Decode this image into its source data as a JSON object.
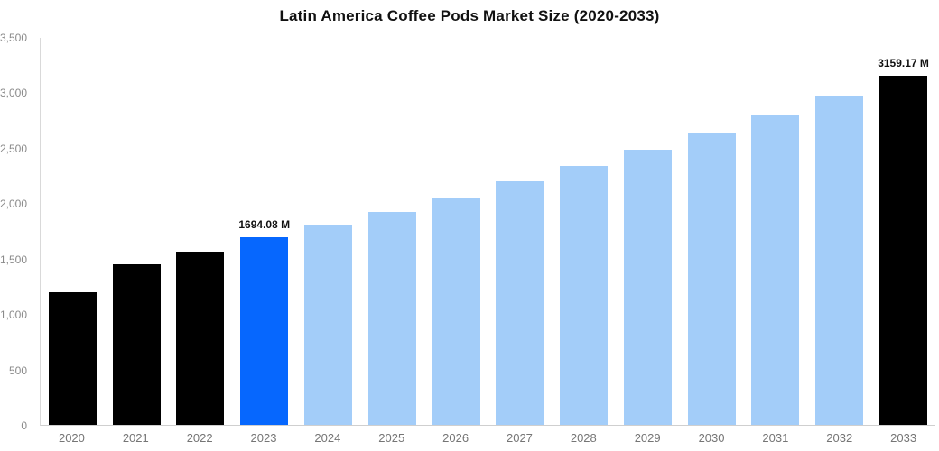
{
  "chart_data": {
    "type": "bar",
    "title": "Latin America Coffee Pods Market Size (2020-2033)",
    "categories": [
      "2020",
      "2021",
      "2022",
      "2023",
      "2024",
      "2025",
      "2026",
      "2027",
      "2028",
      "2029",
      "2030",
      "2031",
      "2032",
      "2033"
    ],
    "values": [
      1200,
      1450,
      1570,
      1694.08,
      1810,
      1925,
      2060,
      2200,
      2340,
      2490,
      2645,
      2810,
      2975,
      3159.17
    ],
    "bar_color_keys": [
      "historical",
      "historical",
      "historical",
      "highlight",
      "forecast",
      "forecast",
      "forecast",
      "forecast",
      "forecast",
      "forecast",
      "forecast",
      "forecast",
      "forecast",
      "historical"
    ],
    "palette": {
      "historical": "#000000",
      "highlight": "#0667fe",
      "forecast": "#a3cdf9"
    },
    "value_labels": [
      {
        "index": 3,
        "text": "1694.08 M"
      },
      {
        "index": 13,
        "text": "3159.17 M"
      }
    ],
    "xlabel": "",
    "ylabel": "",
    "y_axis": {
      "min": 0,
      "max": 3500,
      "tick_values": [
        0,
        500,
        1000,
        1500,
        2000,
        2500,
        3000,
        3500
      ],
      "tick_labels": [
        "0",
        "500",
        "1,000",
        "1,500",
        "2,000",
        "2,500",
        "3,000",
        "3,500"
      ]
    },
    "grid": false,
    "legend_position": "none"
  }
}
